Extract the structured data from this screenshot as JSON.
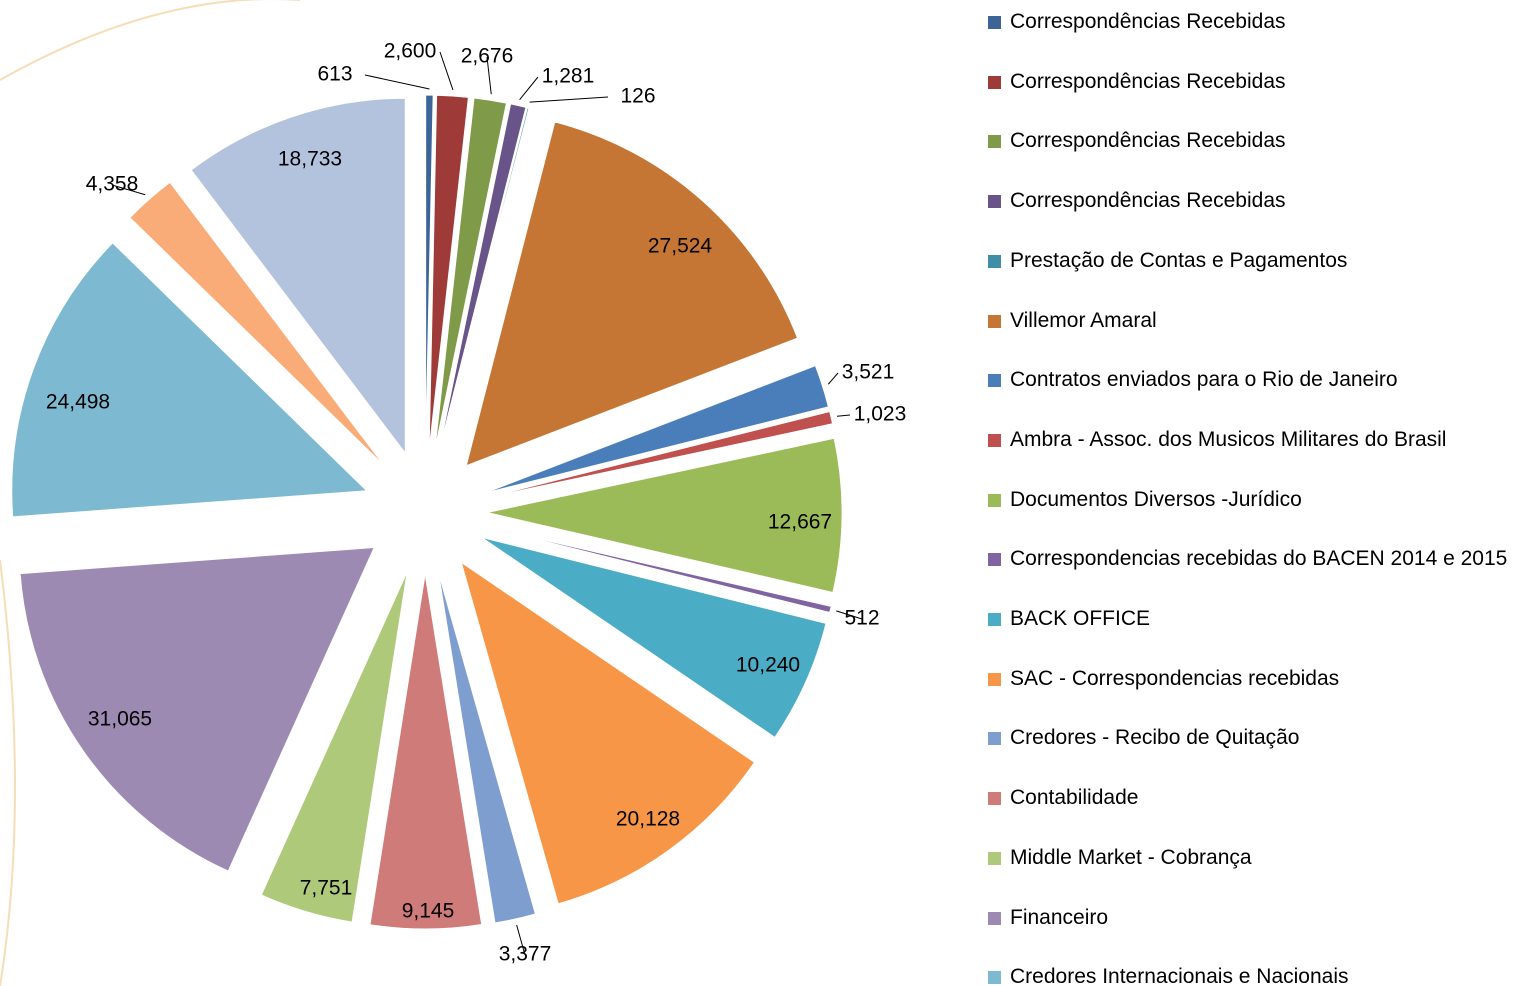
{
  "chart_data": {
    "type": "pie",
    "categories": [
      "Correspondências Recebidas",
      "Correspondências Recebidas",
      "Correspondências Recebidas",
      "Correspondências Recebidas",
      "Prestação de Contas e Pagamentos",
      "Villemor Amaral",
      "Contratos enviados para o Rio de Janeiro",
      "Ambra - Assoc. dos Musicos Militares do Brasil",
      "Documentos Diversos -Jurídico",
      "Correspondencias recebidas do BACEN 2014 e 2015",
      "BACK OFFICE",
      " SAC - Correspondencias recebidas",
      "Credores - Recibo de Quitação",
      "Contabilidade",
      "Middle Market - Cobrança",
      "Financeiro",
      "Credores Internacionais e Nacionais",
      null,
      null
    ],
    "values": [
      613,
      2600,
      2676,
      1281,
      126,
      27524,
      3521,
      1023,
      12667,
      512,
      10240,
      20128,
      3377,
      9145,
      7751,
      31065,
      24498,
      4358,
      18733
    ],
    "value_labels": [
      "613",
      "2,600",
      "2,676",
      "1,281",
      "126",
      "27,524",
      "3,521",
      "1,023",
      "12,667",
      "512",
      "10,240",
      "20,128",
      "3,377",
      "9,145",
      "7,751",
      "31,065",
      "24,498",
      "4,358",
      "18,733"
    ],
    "colors": [
      "#3C6497",
      "#9E3B38",
      "#7F9A48",
      "#69548A",
      "#3E8FA6",
      "#C57635",
      "#4A7EBB",
      "#C0504D",
      "#9BBB59",
      "#8064A2",
      "#4BACC6",
      "#F79646",
      "#7E9ECF",
      "#CF7B79",
      "#AFC97A",
      "#9C8AB3",
      "#7DBAD1",
      "#F9AB78",
      "#B4C3DD"
    ],
    "legend": "right"
  }
}
